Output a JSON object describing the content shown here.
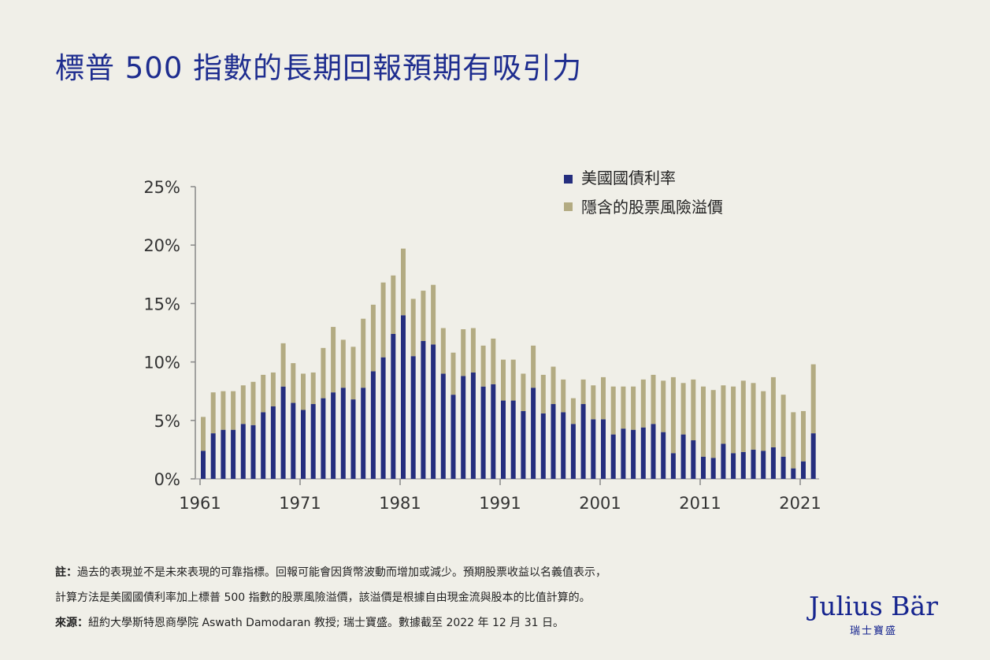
{
  "title": "標普 500 指數的長期回報預期有吸引力",
  "notes": {
    "note_label": "註：",
    "note_line1": "過去的表現並不是未來表現的可靠指標。回報可能會因貨幣波動而增加或減少。預期股票收益以名義值表示，",
    "note_line2": "計算方法是美國國債利率加上標普 500 指數的股票風險溢價，該溢價是根據自由現金流與股本的比值計算的。",
    "source_label": "來源：",
    "source_text": "紐約大學斯特恩商學院 Aswath Damodaran 教授; 瑞士寶盛。數據截至 2022 年 12 月 31 日。"
  },
  "logo": {
    "name": "Julius Bär",
    "sub": "瑞士寶盛"
  },
  "colors": {
    "treasury": "#252e7e",
    "premium": "#b3ab82",
    "title": "#1e2d8f",
    "background": "#f0efe8"
  },
  "chart_data": {
    "type": "bar",
    "stacked": true,
    "title": "",
    "xlabel": "",
    "ylabel": "",
    "ylim": [
      0,
      25
    ],
    "y_ticks": [
      "0%",
      "5%",
      "10%",
      "15%",
      "20%",
      "25%"
    ],
    "x_ticks": [
      "1961",
      "1971",
      "1981",
      "1991",
      "2001",
      "2011",
      "2021"
    ],
    "grid": false,
    "legend": "top-right",
    "categories": [
      1961,
      1962,
      1963,
      1964,
      1965,
      1966,
      1967,
      1968,
      1969,
      1970,
      1971,
      1972,
      1973,
      1974,
      1975,
      1976,
      1977,
      1978,
      1979,
      1980,
      1981,
      1982,
      1983,
      1984,
      1985,
      1986,
      1987,
      1988,
      1989,
      1990,
      1991,
      1992,
      1993,
      1994,
      1995,
      1996,
      1997,
      1998,
      1999,
      2000,
      2001,
      2002,
      2003,
      2004,
      2005,
      2006,
      2007,
      2008,
      2009,
      2010,
      2011,
      2012,
      2013,
      2014,
      2015,
      2016,
      2017,
      2018,
      2019,
      2020,
      2021,
      2022
    ],
    "series": [
      {
        "name": "美國國債利率",
        "values": [
          2.4,
          3.9,
          4.2,
          4.2,
          4.7,
          4.6,
          5.7,
          6.2,
          7.9,
          6.5,
          5.9,
          6.4,
          6.9,
          7.4,
          7.8,
          6.8,
          7.8,
          9.2,
          10.4,
          12.4,
          14.0,
          10.5,
          11.8,
          11.5,
          9.0,
          7.2,
          8.8,
          9.1,
          7.9,
          8.1,
          6.7,
          6.7,
          5.8,
          7.8,
          5.6,
          6.4,
          5.7,
          4.7,
          6.4,
          5.1,
          5.1,
          3.8,
          4.3,
          4.2,
          4.4,
          4.7,
          4.0,
          2.2,
          3.8,
          3.3,
          1.9,
          1.8,
          3.0,
          2.2,
          2.3,
          2.5,
          2.4,
          2.7,
          1.9,
          0.9,
          1.5,
          3.9
        ]
      },
      {
        "name": "隱含的股票風險溢價",
        "values": [
          2.9,
          3.5,
          3.3,
          3.3,
          3.3,
          3.7,
          3.2,
          2.9,
          3.7,
          3.4,
          3.1,
          2.7,
          4.3,
          5.6,
          4.1,
          4.5,
          5.9,
          5.7,
          6.4,
          5.0,
          5.7,
          4.9,
          4.3,
          5.1,
          3.9,
          3.6,
          4.0,
          3.8,
          3.5,
          3.9,
          3.5,
          3.5,
          3.2,
          3.6,
          3.3,
          3.2,
          2.8,
          2.2,
          2.1,
          2.9,
          3.6,
          4.1,
          3.6,
          3.7,
          4.1,
          4.2,
          4.4,
          6.5,
          4.4,
          5.2,
          6.0,
          5.8,
          5.0,
          5.7,
          6.1,
          5.7,
          5.1,
          6.0,
          5.3,
          4.8,
          4.3,
          5.9
        ]
      }
    ]
  }
}
